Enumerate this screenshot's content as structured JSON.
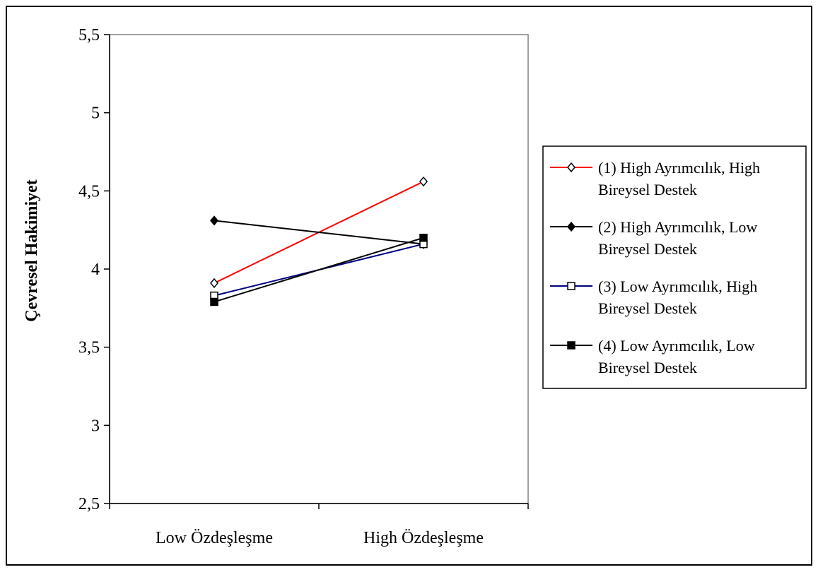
{
  "chart_data": {
    "type": "line",
    "title": "",
    "xlabel": "",
    "ylabel": "Çevresel Hakimiyet",
    "categories": [
      "Low Özdeşleşme",
      "High Özdeşleşme"
    ],
    "y_ticks": [
      "2,5",
      "3",
      "3,5",
      "4",
      "4,5",
      "5",
      "5,5"
    ],
    "ylim": [
      2.5,
      5.5
    ],
    "grid": false,
    "legend_position": "right",
    "series": [
      {
        "name": "(1) High Ayrımcılık, High Bireysel Destek",
        "legend_lines": [
          "(1) High Ayrımcılık, High",
          "Bireysel Destek"
        ],
        "values": [
          3.91,
          4.56
        ],
        "color": "#ff0000",
        "marker": "diamond-open"
      },
      {
        "name": "(2) High Ayrımcılık, Low Bireysel Destek",
        "legend_lines": [
          "(2) High Ayrımcılık, Low",
          "Bireysel Destek"
        ],
        "values": [
          4.31,
          4.16
        ],
        "color": "#000000",
        "marker": "diamond-filled"
      },
      {
        "name": "(3) Low Ayrımcılık, High Bireysel Destek",
        "legend_lines": [
          "(3) Low Ayrımcılık, High",
          "Bireysel Destek"
        ],
        "values": [
          3.83,
          4.16
        ],
        "color": "#000080",
        "marker": "square-open"
      },
      {
        "name": "(4) Low Ayrımcılık, Low Bireysel Destek",
        "legend_lines": [
          "(4) Low Ayrımcılık, Low",
          "Bireysel Destek"
        ],
        "values": [
          3.79,
          4.2
        ],
        "color": "#000000",
        "marker": "square-filled"
      }
    ]
  }
}
